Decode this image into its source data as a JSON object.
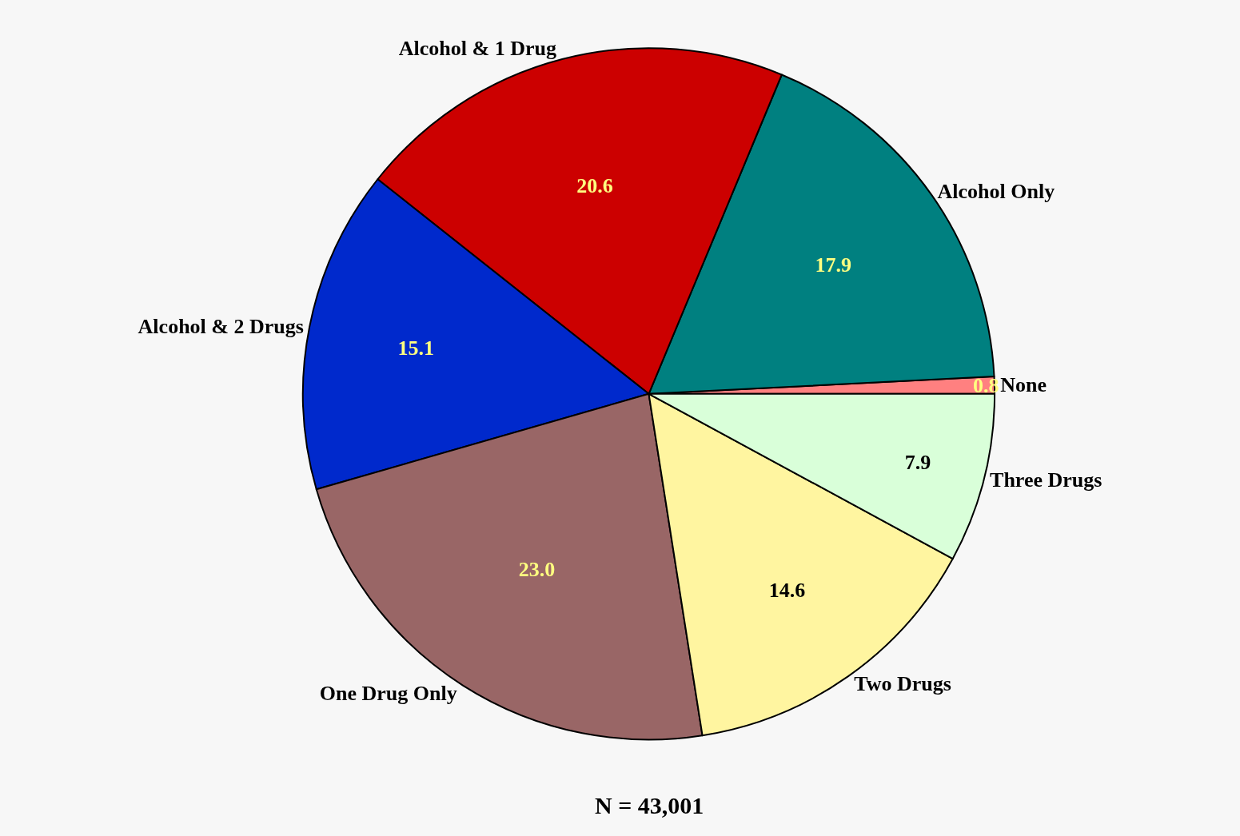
{
  "chart_data": {
    "type": "pie",
    "categories": [
      "None",
      "Alcohol Only",
      "Alcohol & 1 Drug",
      "Alcohol & 2 Drugs",
      "One Drug Only",
      "Two Drugs",
      "Three Drugs"
    ],
    "values": [
      0.8,
      17.9,
      20.6,
      15.1,
      23.0,
      14.6,
      7.9
    ],
    "colors": [
      "#ff8080",
      "#008080",
      "#cc0000",
      "#0029cc",
      "#996666",
      "#fff5a0",
      "#d9ffd9"
    ],
    "value_labels": [
      "0.8",
      "17.9",
      "20.6",
      "15.1",
      "23.0",
      "14.6",
      "7.9"
    ],
    "legend": false,
    "annotations": [
      "N = 43,001"
    ]
  }
}
